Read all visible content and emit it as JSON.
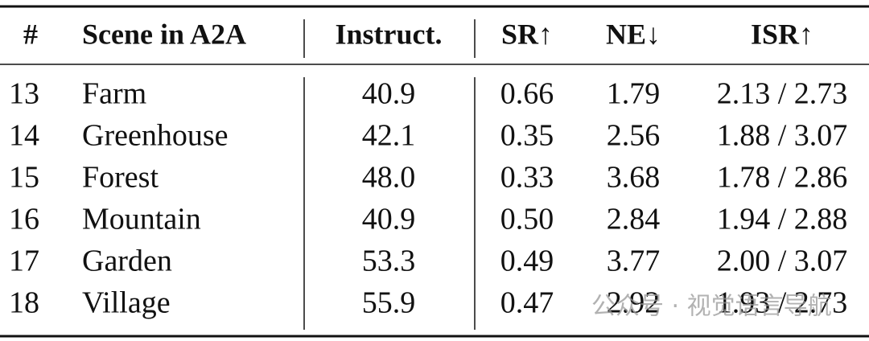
{
  "table": {
    "header": [
      "#",
      "Scene in A2A",
      "Instruct.",
      "SR↑",
      "NE↓",
      "ISR↑"
    ],
    "rows": [
      [
        "13",
        "Farm",
        "40.9",
        "0.66",
        "1.79",
        "2.13 / 2.73"
      ],
      [
        "14",
        "Greenhouse",
        "42.1",
        "0.35",
        "2.56",
        "1.88 / 3.07"
      ],
      [
        "15",
        "Forest",
        "48.0",
        "0.33",
        "3.68",
        "1.78 / 2.86"
      ],
      [
        "16",
        "Mountain",
        "40.9",
        "0.50",
        "2.84",
        "1.94 / 2.88"
      ],
      [
        "17",
        "Garden",
        "53.3",
        "0.49",
        "3.77",
        "2.00 / 3.07"
      ],
      [
        "18",
        "Village",
        "55.9",
        "0.47",
        "2.92",
        "1.93 / 2.73"
      ]
    ]
  },
  "watermark": "公众号 · 视觉语言导航"
}
